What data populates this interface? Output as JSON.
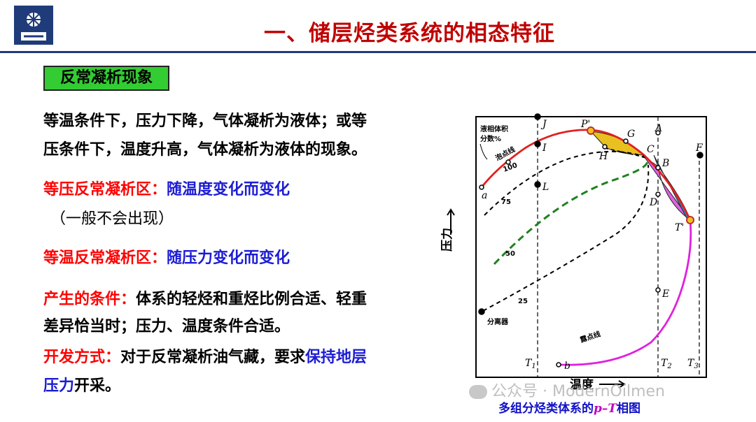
{
  "header": {
    "title": "一、储层烃类系统的相态特征"
  },
  "tag": "反常凝析现象",
  "body": {
    "p1_l1": "等温条件下，压力下降，气体凝析为液体；或等",
    "p1_l2": "压条件下，温度升高，气体凝析为液体的现象。",
    "p2_label": "等压反常凝析区：",
    "p2_text": "随温度变化而变化",
    "p2_note": "（一般不会出现）",
    "p3_label": "等温反常凝析区：",
    "p3_text": "随压力变化而变化",
    "p4_label": "产生的条件：",
    "p4_text": "体系的轻烃和重烃比例合适、轻重",
    "p4_l2": "差异恰当时；压力、温度条件合适。",
    "p5_label": "开发方式：",
    "p5_text": "对于反常凝析油气藏，要求",
    "p5_blue": "保持地层",
    "p5_blue2": "压力",
    "p5_end": "开采。"
  },
  "diagram": {
    "ylabel": "压力",
    "xlabel": "温度",
    "arrow": "→",
    "legend_l1": "液相体积",
    "legend_l2": "分数%",
    "bubble_label": "泡点线",
    "dew_label": "露点线",
    "separator_label": "分离器",
    "curve_labels": [
      "100",
      "75",
      "50",
      "25"
    ],
    "points": {
      "J": "J",
      "I": "I",
      "L": "L",
      "P": "P'",
      "G": "G",
      "H": "H",
      "C": "C",
      "A": "A",
      "B": "B",
      "D": "D",
      "T": "T'",
      "F": "F",
      "E": "E",
      "a": "a",
      "b": "b"
    },
    "temps": {
      "T1": "T",
      "T1s": "1",
      "T2": "T",
      "T2s": "2",
      "T3": "T",
      "T3s": "3"
    }
  },
  "caption": {
    "pre": "多组分烃类体系的",
    "pt": "p–T",
    "post": "相图"
  },
  "watermark": "公众号 · ModernOilmen",
  "colors": {
    "title": "#c00000",
    "rule": "#1f3b7a",
    "tag": "#33cc33",
    "red": "#ff0000",
    "blue": "#1c1cd4",
    "bubble": "#e02020",
    "dew": "#e020e0"
  }
}
